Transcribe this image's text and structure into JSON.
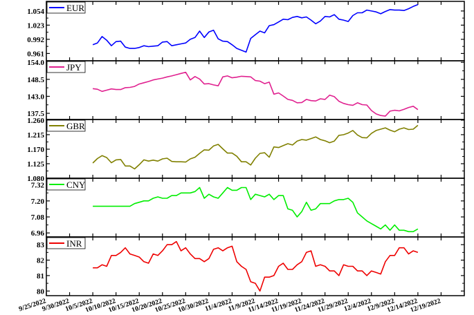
{
  "chart_data": {
    "type": "line",
    "x_labels": [
      "9/25/2022",
      "9/30/2022",
      "10/5/2022",
      "10/10/2022",
      "10/15/2022",
      "10/20/2022",
      "10/25/2022",
      "10/30/2022",
      "11/4/2022",
      "11/9/2022",
      "11/14/2022",
      "11/19/2022",
      "11/24/2022",
      "11/29/2022",
      "12/4/2022",
      "12/9/2022",
      "12/14/2022",
      "12/19/2022"
    ],
    "panels": [
      {
        "name": "EUR",
        "color": "#0000ff",
        "yticks": [
          "0.961",
          "0.992",
          "1.023",
          "1.054"
        ],
        "ylim": [
          0.945,
          1.075
        ],
        "x": [
          10,
          11,
          12,
          13,
          14,
          15,
          16,
          17,
          18,
          19,
          20,
          21,
          22,
          23,
          24,
          25,
          26,
          27,
          28,
          29,
          30,
          31,
          32,
          33,
          34,
          35,
          36,
          37,
          38,
          39,
          40,
          41,
          42,
          43,
          44,
          45,
          46,
          47,
          48,
          49,
          50,
          51,
          52,
          53,
          54,
          55,
          56,
          57,
          58,
          59,
          60,
          61,
          62,
          63,
          64,
          65,
          66,
          67,
          68,
          69,
          70,
          71,
          72,
          73,
          74,
          75,
          76,
          77,
          78,
          79,
          80
        ],
        "y": [
          0.98,
          0.984,
          0.998,
          0.99,
          0.978,
          0.987,
          0.988,
          0.975,
          0.972,
          0.972,
          0.974,
          0.978,
          0.976,
          0.977,
          0.978,
          0.986,
          0.987,
          0.978,
          0.98,
          0.982,
          0.984,
          0.992,
          0.996,
          1.01,
          0.996,
          1.008,
          1.012,
          0.993,
          0.988,
          0.987,
          0.98,
          0.972,
          0.968,
          0.964,
          0.994,
          1.002,
          1.01,
          1.006,
          1.022,
          1.024,
          1.03,
          1.036,
          1.035,
          1.04,
          1.042,
          1.039,
          1.041,
          1.034,
          1.026,
          1.032,
          1.042,
          1.041,
          1.046,
          1.036,
          1.034,
          1.031,
          1.044,
          1.05,
          1.05,
          1.056,
          1.054,
          1.052,
          1.048,
          1.053,
          1.057,
          1.056,
          1.056,
          1.055,
          1.059,
          1.064,
          1.068
        ]
      },
      {
        "name": "JPY",
        "color": "#e0208f",
        "yticks": [
          "137.5",
          "143.0",
          "148.5",
          "154.0"
        ],
        "ylim": [
          135.5,
          154.5
        ],
        "x": [
          10,
          11,
          12,
          13,
          14,
          15,
          16,
          17,
          18,
          19,
          20,
          21,
          22,
          23,
          24,
          25,
          26,
          27,
          28,
          29,
          30,
          31,
          32,
          33,
          34,
          35,
          36,
          37,
          38,
          39,
          40,
          41,
          42,
          43,
          44,
          45,
          46,
          47,
          48,
          49,
          50,
          51,
          52,
          53,
          54,
          55,
          56,
          57,
          58,
          59,
          60,
          61,
          62,
          63,
          64,
          65,
          66,
          67,
          68,
          69,
          70,
          71,
          72,
          73,
          74,
          75,
          76,
          77,
          78,
          79,
          80
        ],
        "y": [
          145.5,
          145.3,
          144.6,
          145.0,
          145.4,
          145.2,
          145.2,
          145.8,
          145.9,
          146.2,
          147.0,
          147.4,
          147.8,
          148.3,
          148.6,
          148.9,
          149.3,
          149.6,
          150.0,
          150.4,
          150.8,
          148.3,
          149.4,
          148.6,
          147.0,
          147.1,
          146.7,
          146.4,
          149.3,
          149.6,
          149.0,
          149.2,
          149.5,
          149.4,
          149.3,
          148.1,
          147.9,
          147.1,
          147.6,
          143.7,
          144.1,
          143.1,
          142.0,
          141.7,
          140.9,
          141.0,
          142.0,
          141.6,
          141.5,
          142.2,
          142.0,
          143.4,
          142.9,
          141.4,
          140.7,
          140.3,
          140.1,
          140.9,
          140.3,
          140.2,
          138.4,
          137.3,
          136.8,
          136.6,
          138.2,
          138.5,
          138.3,
          138.8,
          139.4,
          139.8,
          138.7
        ]
      },
      {
        "name": "GBR",
        "color": "#808000",
        "yticks": [
          "1.080",
          "1.125",
          "1.170",
          "1.215",
          "1.260"
        ],
        "ylim": [
          1.08,
          1.262
        ],
        "x": [
          10,
          11,
          12,
          13,
          14,
          15,
          16,
          17,
          18,
          19,
          20,
          21,
          22,
          23,
          24,
          25,
          26,
          27,
          28,
          29,
          30,
          31,
          32,
          33,
          34,
          35,
          36,
          37,
          38,
          39,
          40,
          41,
          42,
          43,
          44,
          45,
          46,
          47,
          48,
          49,
          50,
          51,
          52,
          53,
          54,
          55,
          56,
          57,
          58,
          59,
          60,
          61,
          62,
          63,
          64,
          65,
          66,
          67,
          68,
          69,
          70,
          71,
          72,
          73,
          74,
          75,
          76,
          77,
          78,
          79,
          80
        ],
        "y": [
          1.127,
          1.141,
          1.15,
          1.144,
          1.128,
          1.137,
          1.138,
          1.118,
          1.118,
          1.109,
          1.122,
          1.137,
          1.133,
          1.136,
          1.133,
          1.14,
          1.142,
          1.132,
          1.131,
          1.131,
          1.13,
          1.14,
          1.145,
          1.157,
          1.168,
          1.167,
          1.18,
          1.185,
          1.171,
          1.158,
          1.158,
          1.148,
          1.131,
          1.131,
          1.121,
          1.142,
          1.157,
          1.159,
          1.145,
          1.177,
          1.175,
          1.181,
          1.187,
          1.183,
          1.195,
          1.2,
          1.198,
          1.203,
          1.208,
          1.2,
          1.196,
          1.19,
          1.195,
          1.213,
          1.215,
          1.22,
          1.228,
          1.214,
          1.206,
          1.205,
          1.219,
          1.228,
          1.232,
          1.236,
          1.229,
          1.224,
          1.232,
          1.236,
          1.231,
          1.232,
          1.244
        ]
      },
      {
        "name": "CNY",
        "color": "#00ee00",
        "yticks": [
          "6.96",
          "7.08",
          "7.20",
          "7.32"
        ],
        "ylim": [
          6.93,
          7.37
        ],
        "x": [
          10,
          11,
          12,
          13,
          14,
          15,
          16,
          17,
          18,
          19,
          20,
          21,
          22,
          23,
          24,
          25,
          26,
          27,
          28,
          29,
          30,
          31,
          32,
          33,
          34,
          35,
          36,
          37,
          38,
          39,
          40,
          41,
          42,
          43,
          44,
          45,
          46,
          47,
          48,
          49,
          50,
          51,
          52,
          53,
          54,
          55,
          56,
          57,
          58,
          59,
          60,
          61,
          62,
          63,
          64,
          65,
          66,
          67,
          68,
          69,
          70,
          71,
          72,
          73,
          74,
          75,
          76,
          77,
          78,
          79,
          80
        ],
        "y": [
          7.16,
          7.16,
          7.16,
          7.16,
          7.16,
          7.16,
          7.16,
          7.16,
          7.16,
          7.18,
          7.19,
          7.2,
          7.2,
          7.22,
          7.23,
          7.22,
          7.22,
          7.24,
          7.24,
          7.26,
          7.26,
          7.26,
          7.27,
          7.3,
          7.22,
          7.25,
          7.23,
          7.22,
          7.26,
          7.3,
          7.28,
          7.28,
          7.3,
          7.3,
          7.21,
          7.25,
          7.24,
          7.23,
          7.25,
          7.21,
          7.24,
          7.24,
          7.14,
          7.13,
          7.08,
          7.12,
          7.19,
          7.13,
          7.14,
          7.18,
          7.18,
          7.18,
          7.2,
          7.21,
          7.21,
          7.22,
          7.19,
          7.11,
          7.08,
          7.05,
          7.03,
          7.01,
          6.99,
          7.02,
          6.98,
          7.02,
          6.98,
          6.98,
          6.97,
          6.97,
          6.99
        ]
      },
      {
        "name": "INR",
        "color": "#ee0000",
        "yticks": [
          "80",
          "81",
          "82",
          "83"
        ],
        "ylim": [
          79.7,
          83.5
        ],
        "x": [
          10,
          11,
          12,
          13,
          14,
          15,
          16,
          17,
          18,
          19,
          20,
          21,
          22,
          23,
          24,
          25,
          26,
          27,
          28,
          29,
          30,
          31,
          32,
          33,
          34,
          35,
          36,
          37,
          38,
          39,
          40,
          41,
          42,
          43,
          44,
          45,
          46,
          47,
          48,
          49,
          50,
          51,
          52,
          53,
          54,
          55,
          56,
          57,
          58,
          59,
          60,
          61,
          62,
          63,
          64,
          65,
          66,
          67,
          68,
          69,
          70,
          71,
          72,
          73,
          74,
          75,
          76,
          77,
          78,
          79,
          80
        ],
        "y": [
          81.5,
          81.5,
          81.7,
          81.6,
          82.3,
          82.3,
          82.5,
          82.8,
          82.4,
          82.3,
          82.2,
          81.9,
          81.8,
          82.4,
          82.3,
          82.6,
          83.0,
          83.0,
          83.2,
          82.6,
          82.8,
          82.4,
          82.1,
          82.1,
          81.9,
          82.1,
          82.7,
          82.8,
          82.6,
          82.8,
          82.9,
          81.9,
          81.6,
          81.4,
          80.6,
          80.5,
          80.0,
          80.9,
          80.9,
          81.0,
          81.6,
          81.8,
          81.4,
          81.4,
          81.7,
          81.9,
          82.5,
          82.6,
          81.6,
          81.7,
          81.6,
          81.3,
          81.3,
          81.0,
          81.7,
          81.6,
          81.6,
          81.3,
          81.3,
          81.0,
          81.3,
          81.2,
          81.1,
          81.9,
          82.3,
          82.3,
          82.8,
          82.8,
          82.4,
          82.6,
          82.5
        ]
      }
    ]
  }
}
